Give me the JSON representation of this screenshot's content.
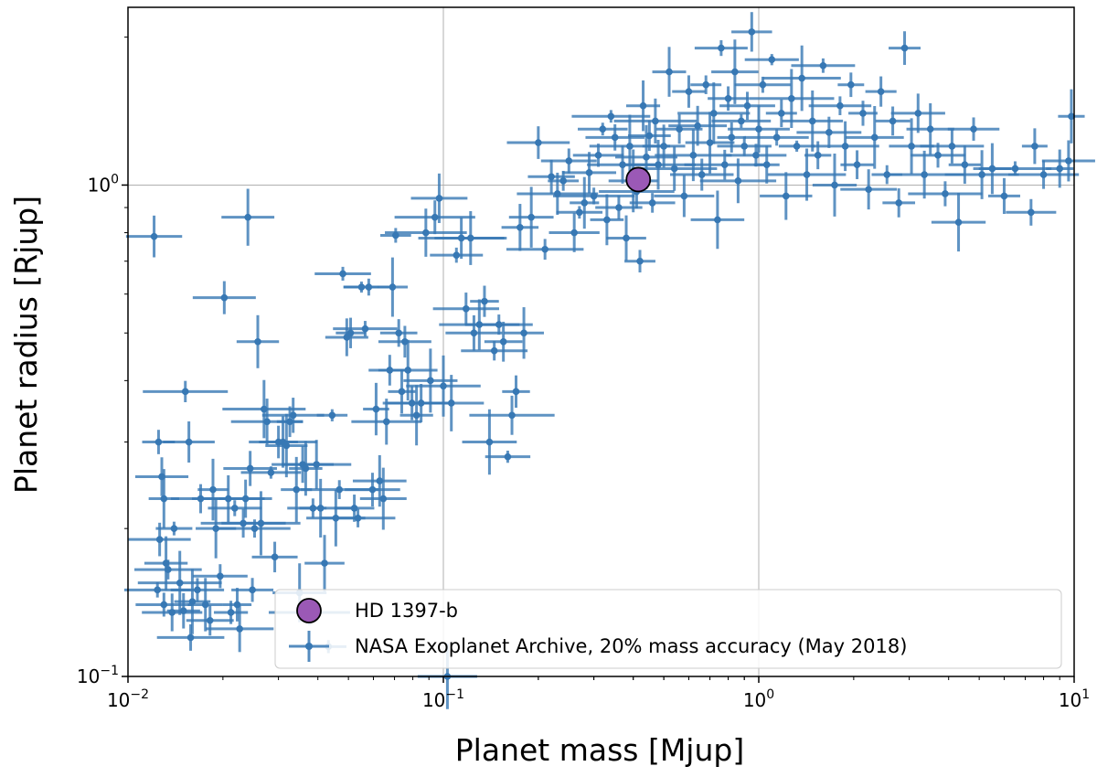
{
  "chart_data": {
    "type": "scatter",
    "title": "",
    "xlabel": "Planet mass [Mjup]",
    "ylabel": "Planet radius [Rjup]",
    "xscale": "log",
    "yscale": "log",
    "xlim": [
      0.01,
      10
    ],
    "ylim": [
      0.1,
      2.3
    ],
    "grid": "major gridlines on",
    "legend_position": "lower-center",
    "x_ticks": [
      {
        "value": 0.01,
        "base": "10",
        "exp": "−2"
      },
      {
        "value": 0.1,
        "base": "10",
        "exp": "−1"
      },
      {
        "value": 1,
        "base": "10",
        "exp": "0"
      },
      {
        "value": 10,
        "base": "10",
        "exp": "1"
      }
    ],
    "y_ticks": [
      {
        "value": 0.1,
        "base": "10",
        "exp": "−1"
      },
      {
        "value": 1,
        "base": "10",
        "exp": "0"
      }
    ],
    "series": [
      {
        "name": "NASA Exoplanet Archive, 20% mass accuracy (May 2018)",
        "color": "#3778b4",
        "marker": "errorbar",
        "x_error_fraction": 0.2,
        "points": [
          [
            0.0121,
            0.786
          ],
          [
            0.0125,
            0.3
          ],
          [
            0.0128,
            0.255
          ],
          [
            0.013,
            0.23
          ],
          [
            0.0126,
            0.19
          ],
          [
            0.0132,
            0.17
          ],
          [
            0.0124,
            0.15
          ],
          [
            0.013,
            0.14
          ],
          [
            0.0134,
            0.165
          ],
          [
            0.0138,
            0.135
          ],
          [
            0.014,
            0.2
          ],
          [
            0.0146,
            0.155
          ],
          [
            0.015,
            0.136
          ],
          [
            0.0152,
            0.38
          ],
          [
            0.0156,
            0.3
          ],
          [
            0.0158,
            0.12
          ],
          [
            0.016,
            0.142
          ],
          [
            0.0166,
            0.15
          ],
          [
            0.017,
            0.23
          ],
          [
            0.0176,
            0.14
          ],
          [
            0.0182,
            0.13
          ],
          [
            0.0186,
            0.24
          ],
          [
            0.019,
            0.2
          ],
          [
            0.0196,
            0.16
          ],
          [
            0.0202,
            0.59
          ],
          [
            0.0208,
            0.23
          ],
          [
            0.0212,
            0.135
          ],
          [
            0.0218,
            0.22
          ],
          [
            0.0222,
            0.14
          ],
          [
            0.0226,
            0.125
          ],
          [
            0.0232,
            0.205
          ],
          [
            0.0236,
            0.23
          ],
          [
            0.024,
            0.86
          ],
          [
            0.0244,
            0.265
          ],
          [
            0.0248,
            0.15
          ],
          [
            0.0252,
            0.2
          ],
          [
            0.0258,
            0.48
          ],
          [
            0.0264,
            0.205
          ],
          [
            0.027,
            0.35
          ],
          [
            0.0276,
            0.33
          ],
          [
            0.0284,
            0.26
          ],
          [
            0.0292,
            0.175
          ],
          [
            0.03,
            0.3
          ],
          [
            0.031,
            0.3
          ],
          [
            0.0318,
            0.295
          ],
          [
            0.0326,
            0.33
          ],
          [
            0.0334,
            0.34
          ],
          [
            0.0342,
            0.24
          ],
          [
            0.035,
            0.148
          ],
          [
            0.0358,
            0.27
          ],
          [
            0.0366,
            0.265
          ],
          [
            0.0376,
            0.135
          ],
          [
            0.0386,
            0.22
          ],
          [
            0.0396,
            0.27
          ],
          [
            0.0408,
            0.22
          ],
          [
            0.042,
            0.17
          ],
          [
            0.0432,
            0.115
          ],
          [
            0.0444,
            0.34
          ],
          [
            0.0456,
            0.21
          ],
          [
            0.0468,
            0.24
          ],
          [
            0.048,
            0.66
          ],
          [
            0.0494,
            0.49
          ],
          [
            0.0508,
            0.5
          ],
          [
            0.0522,
            0.22
          ],
          [
            0.0536,
            0.21
          ],
          [
            0.055,
            0.62
          ],
          [
            0.0565,
            0.51
          ],
          [
            0.058,
            0.62
          ],
          [
            0.0596,
            0.24
          ],
          [
            0.0612,
            0.35
          ],
          [
            0.0628,
            0.25
          ],
          [
            0.0645,
            0.23
          ],
          [
            0.066,
            0.33
          ],
          [
            0.0676,
            0.42
          ],
          [
            0.069,
            0.62
          ],
          [
            0.0706,
            0.79
          ],
          [
            0.0722,
            0.5
          ],
          [
            0.0738,
            0.38
          ],
          [
            0.0755,
            0.48
          ],
          [
            0.0772,
            0.42
          ],
          [
            0.0795,
            0.36
          ],
          [
            0.0822,
            0.34
          ],
          [
            0.085,
            0.36
          ],
          [
            0.088,
            0.8
          ],
          [
            0.091,
            0.4
          ],
          [
            0.094,
            0.86
          ],
          [
            0.097,
            0.94
          ],
          [
            0.1,
            0.39
          ],
          [
            0.103,
            0.1
          ],
          [
            0.106,
            0.36
          ],
          [
            0.11,
            0.72
          ],
          [
            0.114,
            0.78
          ],
          [
            0.118,
            0.56
          ],
          [
            0.122,
            0.78
          ],
          [
            0.125,
            0.5
          ],
          [
            0.13,
            0.52
          ],
          [
            0.135,
            0.58
          ],
          [
            0.14,
            0.3
          ],
          [
            0.145,
            0.46
          ],
          [
            0.15,
            0.52
          ],
          [
            0.155,
            0.48
          ],
          [
            0.16,
            0.28
          ],
          [
            0.165,
            0.34
          ],
          [
            0.17,
            0.38
          ],
          [
            0.175,
            0.82
          ],
          [
            0.18,
            0.5
          ],
          [
            0.19,
            0.86
          ],
          [
            0.2,
            1.22
          ],
          [
            0.21,
            0.74
          ],
          [
            0.22,
            1.04
          ],
          [
            0.23,
            0.96
          ],
          [
            0.24,
            1.02
          ],
          [
            0.25,
            1.12
          ],
          [
            0.26,
            0.8
          ],
          [
            0.27,
            0.88
          ],
          [
            0.28,
            0.92
          ],
          [
            0.29,
            1.06
          ],
          [
            0.3,
            0.95
          ],
          [
            0.31,
            1.15
          ],
          [
            0.32,
            1.3
          ],
          [
            0.33,
            0.85
          ],
          [
            0.34,
            1.38
          ],
          [
            0.35,
            1.25
          ],
          [
            0.36,
            0.9
          ],
          [
            0.37,
            1.1
          ],
          [
            0.38,
            0.78
          ],
          [
            0.39,
            1.2
          ],
          [
            0.4,
            1.02
          ],
          [
            0.41,
            0.97
          ],
          [
            0.42,
            0.7
          ],
          [
            0.43,
            1.45
          ],
          [
            0.44,
            1.14
          ],
          [
            0.45,
            1.26
          ],
          [
            0.46,
            0.92
          ],
          [
            0.47,
            1.35
          ],
          [
            0.48,
            1.1
          ],
          [
            0.5,
            1.2
          ],
          [
            0.52,
            1.7
          ],
          [
            0.54,
            1.08
          ],
          [
            0.56,
            1.3
          ],
          [
            0.58,
            0.95
          ],
          [
            0.6,
            1.55
          ],
          [
            0.62,
            1.15
          ],
          [
            0.64,
            1.32
          ],
          [
            0.66,
            1.05
          ],
          [
            0.68,
            1.6
          ],
          [
            0.7,
            1.22
          ],
          [
            0.72,
            1.4
          ],
          [
            0.74,
            0.85
          ],
          [
            0.76,
            1.9
          ],
          [
            0.78,
            1.1
          ],
          [
            0.8,
            1.5
          ],
          [
            0.82,
            1.25
          ],
          [
            0.84,
            1.7
          ],
          [
            0.86,
            1.02
          ],
          [
            0.88,
            1.35
          ],
          [
            0.9,
            1.2
          ],
          [
            0.92,
            1.45
          ],
          [
            0.95,
            2.05
          ],
          [
            0.98,
            1.15
          ],
          [
            1.0,
            1.3
          ],
          [
            1.03,
            1.6
          ],
          [
            1.06,
            1.1
          ],
          [
            1.1,
            1.8
          ],
          [
            1.14,
            1.25
          ],
          [
            1.18,
            1.4
          ],
          [
            1.22,
            0.95
          ],
          [
            1.27,
            1.5
          ],
          [
            1.32,
            1.2
          ],
          [
            1.37,
            1.65
          ],
          [
            1.42,
            1.05
          ],
          [
            1.48,
            1.35
          ],
          [
            1.54,
            1.15
          ],
          [
            1.6,
            1.75
          ],
          [
            1.67,
            1.28
          ],
          [
            1.74,
            1.0
          ],
          [
            1.81,
            1.45
          ],
          [
            1.88,
            1.2
          ],
          [
            1.96,
            1.6
          ],
          [
            2.05,
            1.1
          ],
          [
            2.14,
            1.4
          ],
          [
            2.23,
            0.98
          ],
          [
            2.33,
            1.25
          ],
          [
            2.44,
            1.55
          ],
          [
            2.55,
            1.05
          ],
          [
            2.66,
            1.35
          ],
          [
            2.78,
            0.92
          ],
          [
            2.9,
            1.9
          ],
          [
            3.05,
            1.2
          ],
          [
            3.2,
            1.4
          ],
          [
            3.35,
            1.05
          ],
          [
            3.5,
            1.3
          ],
          [
            3.7,
            1.15
          ],
          [
            3.9,
            0.96
          ],
          [
            4.1,
            1.2
          ],
          [
            4.3,
            0.84
          ],
          [
            4.5,
            1.1
          ],
          [
            4.8,
            1.3
          ],
          [
            5.1,
            1.05
          ],
          [
            5.5,
            1.08
          ],
          [
            6.0,
            0.95
          ],
          [
            6.5,
            1.08
          ],
          [
            7.3,
            0.88
          ],
          [
            7.5,
            1.2
          ],
          [
            8.0,
            1.05
          ],
          [
            9.0,
            1.08
          ],
          [
            9.6,
            1.12
          ],
          [
            9.8,
            1.38
          ]
        ]
      },
      {
        "name": "HD 1397-b",
        "color": "#9b59b6",
        "marker": "circle",
        "points": [
          [
            0.415,
            1.026
          ]
        ]
      }
    ]
  }
}
